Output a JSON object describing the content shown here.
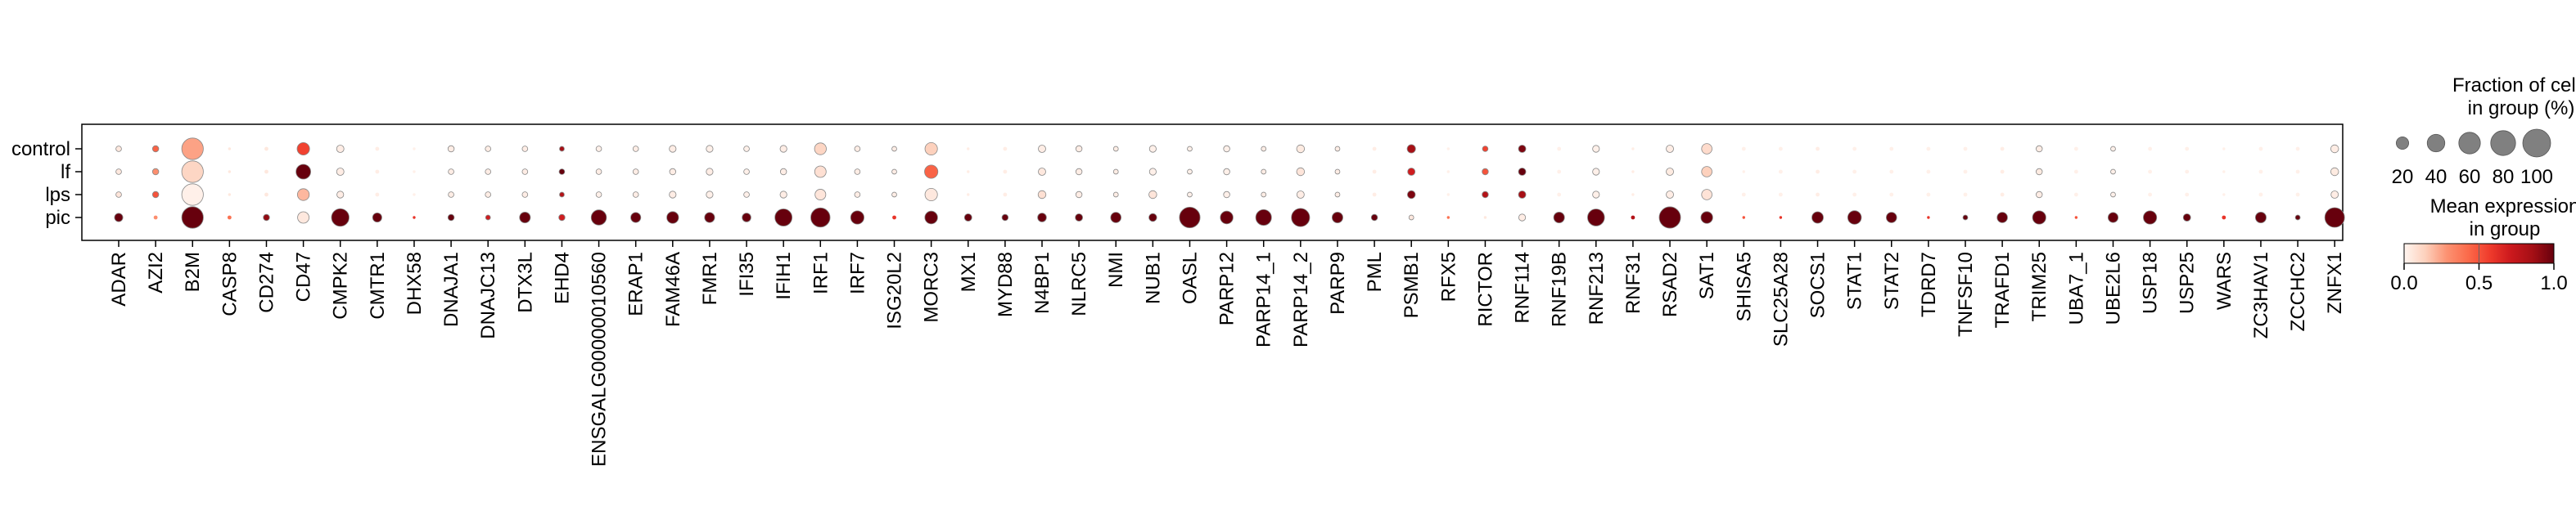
{
  "chart_data": {
    "type": "dotplot",
    "rows": [
      "control",
      "lf",
      "lps",
      "pic"
    ],
    "genes": [
      "ADAR",
      "AZI2",
      "B2M",
      "CASP8",
      "CD274",
      "CD47",
      "CMPK2",
      "CMTR1",
      "DHX58",
      "DNAJA1",
      "DNAJC13",
      "DTX3L",
      "EHD4",
      "ENSGALG00000010560",
      "ERAP1",
      "FAM46A",
      "FMR1",
      "IFI35",
      "IFIH1",
      "IRF1",
      "IRF7",
      "ISG20L2",
      "MORC3",
      "MX1",
      "MYD88",
      "N4BP1",
      "NLRC5",
      "NMI",
      "NUB1",
      "OASL",
      "PARP12",
      "PARP14_1",
      "PARP14_2",
      "PARP9",
      "PML",
      "PSMB1",
      "RFX5",
      "RICTOR",
      "RNF114",
      "RNF19B",
      "RNF213",
      "RNF31",
      "RSAD2",
      "SAT1",
      "SHISA5",
      "SLC25A28",
      "SOCS1",
      "STAT1",
      "STAT2",
      "TDRD7",
      "TNFSF10",
      "TRAFD1",
      "TRIM25",
      "UBA7_1",
      "UBE2L6",
      "USP18",
      "USP25",
      "WARS",
      "ZC3HAV1",
      "ZCCHC2",
      "ZNFX1"
    ],
    "fraction": [
      [
        4,
        5,
        60,
        1,
        2,
        20,
        7,
        2,
        1,
        5,
        4,
        4,
        3,
        4,
        4,
        6,
        6,
        4,
        6,
        18,
        4,
        3,
        20,
        1,
        2,
        7,
        5,
        3,
        6,
        3,
        5,
        3,
        8,
        3,
        2,
        9,
        1,
        4,
        7,
        2,
        6,
        1,
        7,
        14,
        2,
        2,
        2,
        2,
        2,
        2,
        2,
        2,
        5,
        2,
        3,
        2,
        2,
        1,
        2,
        2,
        8
      ],
      [
        4,
        5,
        60,
        1,
        2,
        28,
        7,
        2,
        1,
        4,
        4,
        4,
        4,
        4,
        4,
        5,
        6,
        4,
        5,
        17,
        4,
        3,
        23,
        1,
        2,
        7,
        5,
        3,
        6,
        3,
        5,
        3,
        8,
        3,
        2,
        7,
        1,
        5,
        7,
        2,
        6,
        1,
        7,
        14,
        1,
        2,
        2,
        2,
        2,
        2,
        2,
        2,
        5,
        2,
        3,
        2,
        2,
        1,
        2,
        2,
        8
      ],
      [
        4,
        5,
        60,
        1,
        2,
        18,
        6,
        2,
        1,
        4,
        4,
        4,
        3,
        4,
        4,
        6,
        6,
        4,
        6,
        15,
        4,
        3,
        20,
        1,
        2,
        8,
        5,
        3,
        8,
        3,
        5,
        3,
        7,
        3,
        2,
        8,
        1,
        5,
        7,
        2,
        6,
        1,
        7,
        14,
        2,
        2,
        2,
        2,
        2,
        2,
        2,
        2,
        5,
        2,
        3,
        2,
        2,
        1,
        2,
        2,
        7
      ],
      [
        9,
        2,
        60,
        2,
        5,
        17,
        40,
        11,
        1,
        5,
        3,
        15,
        5,
        30,
        13,
        18,
        13,
        10,
        38,
        48,
        23,
        2,
        21,
        7,
        5,
        10,
        7,
        14,
        8,
        55,
        21,
        32,
        43,
        15,
        5,
        3,
        1,
        1,
        6,
        15,
        37,
        2,
        59,
        18,
        1,
        1,
        17,
        24,
        14,
        1,
        3,
        14,
        23,
        1,
        13,
        23,
        7,
        2,
        15,
        3,
        50
      ]
    ],
    "expression": [
      [
        0.05,
        0.45,
        0.25,
        0.05,
        0.05,
        0.55,
        0.03,
        0.03,
        0.02,
        0.03,
        0.03,
        0.03,
        0.85,
        0.02,
        0.03,
        0.03,
        0.02,
        0.02,
        0.03,
        0.12,
        0.03,
        0.03,
        0.14,
        0.03,
        0.03,
        0.03,
        0.03,
        0.03,
        0.02,
        0.02,
        0.02,
        0.03,
        0.04,
        0.03,
        0.03,
        0.85,
        0.02,
        0.55,
        0.95,
        0.02,
        0.02,
        0.03,
        0.03,
        0.1,
        0.02,
        0.02,
        0.03,
        0.02,
        0.02,
        0.02,
        0.02,
        0.03,
        0.03,
        0.02,
        0.02,
        0.02,
        0.02,
        0.02,
        0.02,
        0.02,
        0.03
      ],
      [
        0.05,
        0.3,
        0.12,
        0.05,
        0.05,
        1.0,
        0.03,
        0.03,
        0.02,
        0.03,
        0.03,
        0.03,
        1.0,
        0.03,
        0.03,
        0.03,
        0.03,
        0.02,
        0.03,
        0.08,
        0.03,
        0.03,
        0.45,
        0.03,
        0.03,
        0.05,
        0.03,
        0.03,
        0.02,
        0.02,
        0.02,
        0.03,
        0.06,
        0.03,
        0.03,
        0.7,
        0.02,
        0.5,
        1.0,
        0.02,
        0.02,
        0.03,
        0.04,
        0.14,
        0.02,
        0.02,
        0.03,
        0.02,
        0.02,
        0.02,
        0.02,
        0.03,
        0.04,
        0.02,
        0.02,
        0.02,
        0.02,
        0.02,
        0.02,
        0.02,
        0.04
      ],
      [
        0.06,
        0.5,
        0.02,
        0.05,
        0.05,
        0.2,
        0.03,
        0.03,
        0.02,
        0.03,
        0.03,
        0.03,
        0.8,
        0.02,
        0.03,
        0.03,
        0.02,
        0.02,
        0.03,
        0.06,
        0.03,
        0.03,
        0.05,
        0.03,
        0.03,
        0.08,
        0.03,
        0.03,
        0.06,
        0.02,
        0.02,
        0.03,
        0.03,
        0.03,
        0.03,
        0.95,
        0.02,
        0.8,
        0.85,
        0.02,
        0.02,
        0.03,
        0.03,
        0.07,
        0.02,
        0.02,
        0.03,
        0.02,
        0.02,
        0.02,
        0.02,
        0.03,
        0.03,
        0.02,
        0.02,
        0.02,
        0.02,
        0.02,
        0.02,
        0.02,
        0.03
      ],
      [
        1.0,
        0.3,
        1.0,
        0.4,
        0.9,
        0.05,
        1.0,
        1.0,
        0.6,
        1.0,
        0.7,
        1.0,
        0.7,
        1.0,
        1.0,
        1.0,
        1.0,
        1.0,
        1.0,
        1.0,
        1.0,
        0.6,
        1.0,
        1.0,
        1.0,
        1.0,
        1.0,
        1.0,
        1.0,
        1.0,
        1.0,
        1.0,
        1.0,
        1.0,
        1.0,
        0.05,
        0.4,
        0.05,
        0.03,
        1.0,
        1.0,
        0.8,
        1.0,
        1.0,
        0.5,
        0.6,
        1.0,
        1.0,
        1.0,
        0.6,
        1.0,
        1.0,
        1.0,
        0.5,
        1.0,
        1.0,
        1.0,
        0.6,
        1.0,
        1.0,
        1.0
      ]
    ],
    "size_legend": {
      "title_line1": "Fraction of cells",
      "title_line2": "in group (%)",
      "values": [
        20,
        40,
        60,
        80,
        100
      ],
      "labels": [
        "20",
        "40",
        "60",
        "80",
        "100"
      ]
    },
    "color_legend": {
      "title_line1": "Mean expression",
      "title_line2": "in group",
      "range": [
        0.0,
        1.0
      ],
      "ticks": [
        "0.0",
        "0.5",
        "1.0"
      ],
      "colormap": [
        "#fff5f0",
        "#fdd0bc",
        "#fc9272",
        "#fb6a4a",
        "#ef3b2c",
        "#cb181d",
        "#a50f15",
        "#67000d"
      ]
    }
  }
}
